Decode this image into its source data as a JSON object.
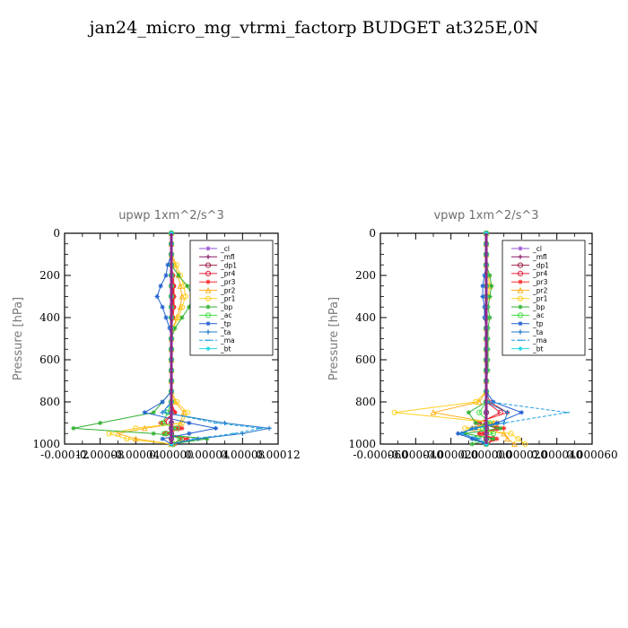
{
  "title": "jan24_micro_mg_vtrmi_factorp  BUDGET at325E,0N",
  "chart_data": [
    {
      "type": "line",
      "title": "upwp   1xm^2/s^3",
      "ylabel": "Pressure [hPa]",
      "xlabel": "",
      "ylim": [
        1000,
        0
      ],
      "yticks": [
        0,
        200,
        400,
        600,
        800,
        1000
      ],
      "xlim": [
        -0.00012,
        0.00012
      ],
      "xticks": [
        "-0.00012",
        "-0.00008",
        "-0.00004",
        "0.00000",
        "0.00004",
        "0.00008",
        "0.00012"
      ],
      "y": [
        0,
        50,
        100,
        150,
        200,
        250,
        300,
        350,
        400,
        450,
        500,
        550,
        600,
        650,
        700,
        750,
        800,
        850,
        900,
        925,
        950,
        975,
        1000
      ],
      "series": [
        {
          "name": "_cl",
          "color": "#9a4fd0",
          "marker": "star",
          "values": [
            0,
            0,
            0,
            0,
            0,
            0,
            0,
            0,
            0,
            0,
            0,
            0,
            0,
            0,
            0,
            0,
            0,
            0,
            0,
            0,
            0,
            0,
            0
          ]
        },
        {
          "name": "_mfl",
          "color": "#8b1a6b",
          "marker": "plus",
          "values": [
            0,
            0,
            0,
            0,
            0,
            0,
            0,
            0,
            0,
            0,
            0,
            0,
            0,
            0,
            0,
            0,
            0,
            0,
            0,
            0,
            0,
            0,
            0
          ]
        },
        {
          "name": "_dp1",
          "color": "#a0204a",
          "marker": "circle",
          "values": [
            0,
            0,
            0,
            0,
            0,
            0,
            0,
            0,
            0,
            0,
            0,
            0,
            0,
            0,
            0,
            0,
            0,
            0,
            0,
            0,
            0,
            0,
            0
          ]
        },
        {
          "name": "_pr4",
          "color": "#e0203a",
          "marker": "circle",
          "values": [
            0,
            0,
            0,
            0,
            1e-06,
            2e-06,
            2e-06,
            2e-06,
            1e-06,
            0,
            0,
            0,
            0,
            0,
            0,
            0,
            0,
            3e-06,
            -8e-06,
            8e-06,
            -6e-06,
            1.2e-05,
            2e-06
          ]
        },
        {
          "name": "_pr3",
          "color": "#ff2a2a",
          "marker": "star",
          "values": [
            0,
            0,
            0,
            0,
            2e-06,
            3e-06,
            3e-06,
            3e-06,
            2e-06,
            0,
            0,
            0,
            0,
            0,
            0,
            0,
            0,
            4e-06,
            -1.2e-05,
            1.2e-05,
            -8e-06,
            1.8e-05,
            4e-06
          ]
        },
        {
          "name": "_pr2",
          "color": "#ffb020",
          "marker": "triangle",
          "values": [
            0,
            0,
            0,
            4e-06,
            8e-06,
            1e-05,
            1.2e-05,
            1e-05,
            6e-06,
            2e-06,
            0,
            0,
            0,
            0,
            0,
            0,
            4e-06,
            1.4e-05,
            1e-05,
            -3e-05,
            -6e-05,
            -4e-05,
            0
          ]
        },
        {
          "name": "_pr1",
          "color": "#ffd020",
          "marker": "circle",
          "values": [
            0,
            0,
            0,
            6e-06,
            1e-05,
            1.4e-05,
            1.6e-05,
            1.2e-05,
            8e-06,
            2e-06,
            0,
            0,
            0,
            0,
            0,
            0,
            6e-06,
            1.8e-05,
            1.2e-05,
            -4e-05,
            -7e-05,
            -5e-05,
            0
          ]
        },
        {
          "name": "_bp",
          "color": "#30b030",
          "marker": "star",
          "values": [
            0,
            0,
            0,
            0,
            8e-06,
            1.8e-05,
            2.4e-05,
            2e-05,
            1.2e-05,
            4e-06,
            0,
            0,
            0,
            0,
            0,
            0,
            -1e-05,
            -2e-05,
            -8e-05,
            -0.00011,
            -2e-05,
            4e-05,
            0
          ]
        },
        {
          "name": "_ac",
          "color": "#40e040",
          "marker": "circle",
          "values": [
            0,
            0,
            0,
            0,
            0,
            0,
            0,
            0,
            0,
            0,
            0,
            0,
            0,
            0,
            0,
            0,
            0,
            -4e-06,
            -1e-05,
            6e-06,
            -8e-06,
            1e-05,
            2e-06
          ]
        },
        {
          "name": "_tp",
          "color": "#2060d0",
          "marker": "star",
          "values": [
            0,
            0,
            0,
            -4e-06,
            -6e-06,
            -1.2e-05,
            -1.6e-05,
            -1e-05,
            -6e-06,
            -2e-06,
            0,
            0,
            0,
            0,
            0,
            0,
            -1e-05,
            -3e-05,
            2e-05,
            5e-05,
            2e-05,
            -1e-05,
            0
          ]
        },
        {
          "name": "_ta",
          "color": "#1e78c8",
          "marker": "plus",
          "values": [
            0,
            0,
            0,
            0,
            0,
            0,
            0,
            0,
            0,
            0,
            0,
            0,
            0,
            0,
            0,
            0,
            0,
            -1e-05,
            6e-05,
            0.00011,
            8e-05,
            3e-05,
            0
          ]
        },
        {
          "name": "_ma",
          "color": "#20a0e0",
          "marker": "dash",
          "values": [
            0,
            0,
            0,
            0,
            0,
            0,
            0,
            0,
            0,
            0,
            0,
            0,
            0,
            0,
            0,
            0,
            0,
            -8e-06,
            5e-05,
            0.0001,
            7e-05,
            2.5e-05,
            0
          ]
        },
        {
          "name": "_bt",
          "color": "#20d8e8",
          "marker": "diamond",
          "values": [
            0,
            0,
            0,
            0,
            0,
            0,
            0,
            0,
            0,
            0,
            0,
            0,
            0,
            0,
            0,
            0,
            0,
            0,
            0,
            0,
            0,
            0,
            0
          ]
        }
      ]
    },
    {
      "type": "line",
      "title": "vpwp   1xm^2/s^3",
      "ylabel": "Pressure [hPa]",
      "xlabel": "",
      "ylim": [
        1000,
        0
      ],
      "yticks": [
        0,
        200,
        400,
        600,
        800,
        1000
      ],
      "xlim": [
        -6e-05,
        6e-05
      ],
      "xticks": [
        "-0.000060",
        "-0.000040",
        "-0.000020",
        "0.000000",
        "0.000020",
        "0.000040",
        "0.000060"
      ],
      "y": [
        0,
        50,
        100,
        150,
        200,
        250,
        300,
        350,
        400,
        450,
        500,
        550,
        600,
        650,
        700,
        750,
        800,
        850,
        900,
        925,
        950,
        975,
        1000
      ],
      "series": [
        {
          "name": "_cl",
          "color": "#9a4fd0",
          "marker": "star",
          "values": [
            0,
            0,
            0,
            0,
            0,
            0,
            0,
            0,
            0,
            0,
            0,
            0,
            0,
            0,
            0,
            0,
            0,
            0,
            0,
            0,
            0,
            0,
            0
          ]
        },
        {
          "name": "_mfl",
          "color": "#8b1a6b",
          "marker": "plus",
          "values": [
            0,
            0,
            0,
            0,
            0,
            0,
            0,
            0,
            0,
            0,
            0,
            0,
            0,
            0,
            0,
            0,
            0,
            0,
            0,
            0,
            0,
            0,
            0
          ]
        },
        {
          "name": "_dp1",
          "color": "#a0204a",
          "marker": "circle",
          "values": [
            0,
            0,
            0,
            0,
            0,
            0,
            0,
            0,
            0,
            0,
            0,
            0,
            0,
            0,
            0,
            0,
            0,
            0,
            0,
            0,
            0,
            0,
            0
          ]
        },
        {
          "name": "_pr4",
          "color": "#e0203a",
          "marker": "circle",
          "values": [
            0,
            0,
            0,
            0,
            0,
            0,
            0,
            0,
            0,
            0,
            0,
            0,
            0,
            0,
            0,
            0,
            0,
            8e-06,
            -4e-06,
            6e-06,
            -3e-06,
            4e-06,
            0
          ]
        },
        {
          "name": "_pr3",
          "color": "#ff2a2a",
          "marker": "star",
          "values": [
            0,
            0,
            0,
            0,
            0,
            0,
            0,
            0,
            0,
            0,
            0,
            0,
            0,
            0,
            0,
            0,
            2e-06,
            1.2e-05,
            -6e-06,
            1e-05,
            -4e-06,
            6e-06,
            0
          ]
        },
        {
          "name": "_pr2",
          "color": "#ffb020",
          "marker": "triangle",
          "values": [
            0,
            0,
            0,
            0,
            1e-06,
            2e-06,
            1e-06,
            0,
            0,
            0,
            0,
            0,
            0,
            0,
            0,
            0,
            -4e-06,
            -3e-05,
            4e-06,
            -8e-06,
            1e-05,
            1.2e-05,
            1.6e-05
          ]
        },
        {
          "name": "_pr1",
          "color": "#ffd020",
          "marker": "circle",
          "values": [
            0,
            0,
            0,
            0,
            1e-06,
            2e-06,
            1e-06,
            0,
            0,
            0,
            0,
            0,
            0,
            0,
            0,
            0,
            -6e-06,
            -5.2e-05,
            6e-06,
            -1.2e-05,
            1.4e-05,
            1.8e-05,
            2.2e-05
          ]
        },
        {
          "name": "_bp",
          "color": "#30b030",
          "marker": "star",
          "values": [
            0,
            0,
            0,
            0,
            2e-06,
            3e-06,
            2e-06,
            1e-06,
            2e-06,
            1e-06,
            1e-06,
            1e-06,
            1e-06,
            1e-06,
            0,
            0,
            0,
            -1e-05,
            -6e-06,
            8e-06,
            -1.2e-05,
            4e-06,
            -8e-06
          ]
        },
        {
          "name": "_ac",
          "color": "#40e040",
          "marker": "circle",
          "values": [
            0,
            0,
            0,
            0,
            0,
            0,
            0,
            0,
            0,
            0,
            0,
            0,
            0,
            0,
            0,
            0,
            0,
            -4e-06,
            2e-06,
            -2e-06,
            4e-06,
            -6e-06,
            0
          ]
        },
        {
          "name": "_tp",
          "color": "#2060d0",
          "marker": "star",
          "values": [
            0,
            0,
            0,
            0,
            -1e-06,
            -2e-06,
            -2e-06,
            -1e-06,
            -1e-06,
            0,
            0,
            0,
            0,
            0,
            0,
            0,
            4e-06,
            2e-05,
            6e-06,
            -6e-06,
            -1.6e-05,
            -8e-06,
            0
          ]
        },
        {
          "name": "_ta",
          "color": "#1e78c8",
          "marker": "plus",
          "values": [
            0,
            0,
            0,
            0,
            0,
            0,
            0,
            0,
            0,
            0,
            0,
            0,
            0,
            0,
            0,
            0,
            0,
            1.2e-05,
            1e-05,
            -8e-06,
            -1.4e-05,
            -6e-06,
            0
          ]
        },
        {
          "name": "_ma",
          "color": "#20a0e0",
          "marker": "dash",
          "values": [
            0,
            0,
            0,
            0,
            0,
            0,
            0,
            0,
            0,
            0,
            0,
            0,
            0,
            0,
            0,
            0,
            2e-06,
            4.6e-05,
            1e-05,
            -6e-06,
            -1.4e-05,
            -4e-06,
            0
          ]
        },
        {
          "name": "_bt",
          "color": "#20d8e8",
          "marker": "diamond",
          "values": [
            0,
            0,
            0,
            0,
            0,
            0,
            0,
            0,
            0,
            0,
            0,
            0,
            0,
            0,
            0,
            0,
            0,
            0,
            0,
            0,
            0,
            0,
            0
          ]
        }
      ]
    }
  ]
}
